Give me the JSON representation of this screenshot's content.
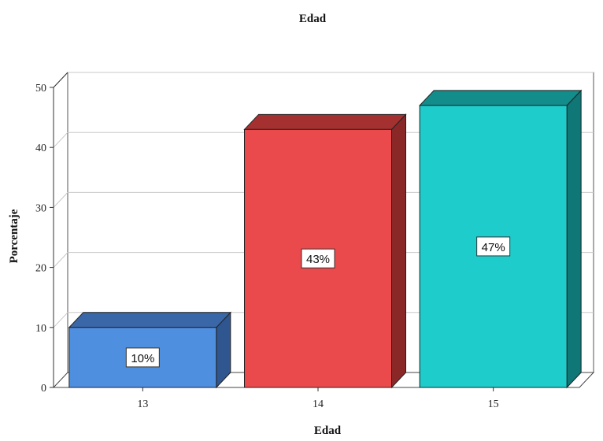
{
  "chart_data": {
    "type": "bar",
    "title": "Edad",
    "xlabel": "Edad",
    "ylabel": "Porcentaje",
    "categories": [
      "13",
      "14",
      "15"
    ],
    "values": [
      10,
      43,
      47
    ],
    "data_labels": [
      "10%",
      "43%",
      "47%"
    ],
    "ylim": [
      0,
      50
    ],
    "yticks": [
      0,
      10,
      20,
      30,
      40,
      50
    ],
    "grid": true,
    "three_d": true,
    "colors": {
      "fronts": [
        "#4f8fe0",
        "#ea4a4c",
        "#1ecccb"
      ],
      "tops": [
        "#3a67a8",
        "#a53030",
        "#128d8c"
      ],
      "sides": [
        "#2f568f",
        "#8a2828",
        "#0f7776"
      ]
    }
  }
}
